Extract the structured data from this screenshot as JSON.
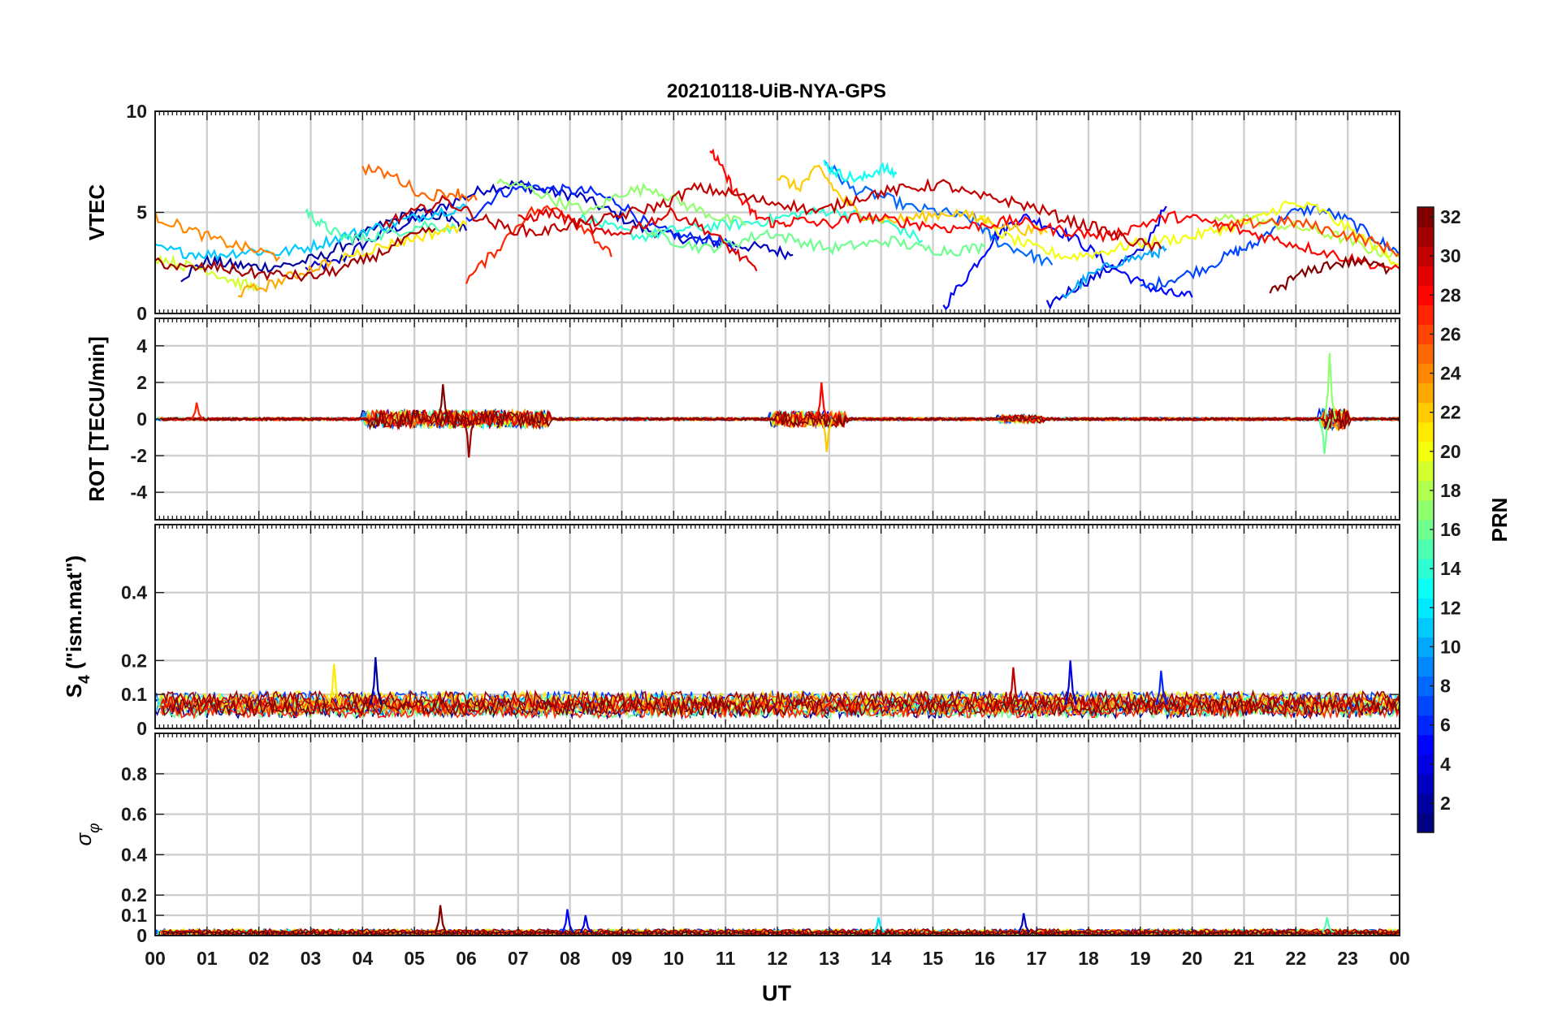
{
  "chart_data": {
    "type": "line",
    "title": "20210118-UiB-NYA-GPS",
    "xlabel": "UT",
    "x_ticks": [
      "00",
      "01",
      "02",
      "03",
      "04",
      "05",
      "06",
      "07",
      "08",
      "09",
      "10",
      "11",
      "12",
      "13",
      "14",
      "15",
      "16",
      "17",
      "18",
      "19",
      "20",
      "21",
      "22",
      "23",
      "00"
    ],
    "xlim": [
      0,
      24
    ],
    "grid": true,
    "colorbar": {
      "label": "PRN",
      "range": [
        1,
        32
      ],
      "ticks": [
        "2",
        "4",
        "6",
        "8",
        "10",
        "12",
        "14",
        "16",
        "18",
        "20",
        "22",
        "24",
        "26",
        "28",
        "30",
        "32"
      ],
      "colormap": "jet"
    },
    "panels": [
      {
        "ylabel": "VTEC",
        "ylim": [
          0,
          10
        ],
        "y_ticks": [
          "0",
          "5",
          "10"
        ],
        "series": [
          {
            "prn": 3,
            "x": [
              2.9,
              3.5,
              4.0,
              4.6,
              5.2,
              5.8,
              6.4,
              7.0,
              7.6,
              8.2,
              8.8,
              9.4,
              10.0,
              10.6,
              11.2,
              11.8,
              12.3
            ],
            "y": [
              2.2,
              2.5,
              3.4,
              4.2,
              4.8,
              5.6,
              6.2,
              6.4,
              6.0,
              5.8,
              5.0,
              4.2,
              3.8,
              3.6,
              3.4,
              3.2,
              2.9
            ]
          },
          {
            "prn": 2,
            "x": [
              0.5,
              1.0,
              1.5,
              2.0,
              2.6,
              3.2,
              3.8,
              4.4,
              5.0,
              5.6,
              6.0
            ],
            "y": [
              1.8,
              2.6,
              2.4,
              2.3,
              2.4,
              2.8,
              3.6,
              4.4,
              5.0,
              4.8,
              4.1
            ]
          },
          {
            "prn": 6,
            "x": [
              6.0,
              6.6,
              7.2,
              7.8,
              8.4,
              9.0,
              9.6,
              10.2,
              10.8,
              11.2
            ],
            "y": [
              4.6,
              5.9,
              6.3,
              6.1,
              6.0,
              5.4,
              4.2,
              3.8,
              3.6,
              3.2
            ]
          },
          {
            "prn": 5,
            "x": [
              15.2,
              15.7,
              16.2,
              16.7,
              17.2,
              17.8,
              18.4,
              19.0,
              19.5,
              20.0
            ],
            "y": [
              0.3,
              2.0,
              3.8,
              4.8,
              4.4,
              3.6,
              2.4,
              1.5,
              1.0,
              0.8
            ]
          },
          {
            "prn": 4,
            "x": [
              17.2,
              17.8,
              18.4,
              19.0,
              19.5
            ],
            "y": [
              0.4,
              1.4,
              2.2,
              3.0,
              5.3
            ]
          },
          {
            "prn": 7,
            "x": [
              19.0,
              19.6,
              20.2,
              20.8,
              21.2,
              21.8,
              22.4,
              23.0,
              23.6,
              24.0
            ],
            "y": [
              1.2,
              1.7,
              2.2,
              3.0,
              3.4,
              4.9,
              5.2,
              4.6,
              3.6,
              3.0
            ]
          },
          {
            "prn": 8,
            "x": [
              12.9,
              13.4,
              14.0,
              14.6,
              15.2,
              15.8,
              16.2,
              16.8,
              17.3
            ],
            "y": [
              7.6,
              6.2,
              5.8,
              5.2,
              5.0,
              4.6,
              3.6,
              3.0,
              2.4
            ]
          },
          {
            "prn": 10,
            "x": [
              17.5,
              18.0,
              18.6,
              19.2,
              19.5
            ],
            "y": [
              0.8,
              1.8,
              2.6,
              2.9,
              3.2
            ]
          },
          {
            "prn": 11,
            "x": [
              0.0,
              0.6,
              1.2,
              1.8,
              2.4,
              3.0,
              3.6,
              4.2,
              4.8,
              5.4,
              6.0
            ],
            "y": [
              3.2,
              3.0,
              2.9,
              3.1,
              3.0,
              3.3,
              3.8,
              4.2,
              4.6,
              5.0,
              5.3
            ]
          },
          {
            "prn": 13,
            "x": [
              12.9,
              13.2,
              13.6,
              14.0,
              14.3
            ],
            "y": [
              7.4,
              6.9,
              6.6,
              7.2,
              6.9
            ]
          },
          {
            "prn": 15,
            "x": [
              2.9,
              3.2,
              3.6,
              4.0,
              4.6,
              5.2,
              5.8
            ],
            "y": [
              5.1,
              4.4,
              3.8,
              3.7,
              4.0,
              4.4,
              4.2
            ]
          },
          {
            "prn": 14,
            "x": [
              8.2,
              8.8,
              9.4,
              10.0,
              10.6,
              11.2,
              11.8,
              12.4,
              13.0,
              13.6,
              14.2,
              14.8
            ],
            "y": [
              4.8,
              4.2,
              3.8,
              4.1,
              4.3,
              4.4,
              4.6,
              4.9,
              5.1,
              4.8,
              4.4,
              3.6
            ]
          },
          {
            "prn": 17,
            "x": [
              6.6,
              7.2,
              7.8,
              8.4,
              9.0,
              9.6,
              10.2,
              10.8,
              11.4
            ],
            "y": [
              6.5,
              6.2,
              5.5,
              5.0,
              6.0,
              6.2,
              5.4,
              4.8,
              4.4
            ]
          },
          {
            "prn": 18,
            "x": [
              20.4,
              21.0,
              21.6,
              22.2,
              22.8,
              23.4,
              24.0
            ],
            "y": [
              4.6,
              4.8,
              4.4,
              4.2,
              3.8,
              3.2,
              2.8
            ]
          },
          {
            "prn": 16,
            "x": [
              9.4,
              10.0,
              10.6,
              11.2,
              11.8,
              12.4,
              13.0,
              13.6,
              14.2,
              14.8,
              15.4,
              16.0
            ],
            "y": [
              4.2,
              3.6,
              3.2,
              3.5,
              4.0,
              3.6,
              3.2,
              3.4,
              3.6,
              3.2,
              3.1,
              3.3
            ]
          },
          {
            "prn": 19,
            "x": [
              0.0,
              0.5,
              1.0,
              1.5,
              2.0
            ],
            "y": [
              2.8,
              2.4,
              2.2,
              1.6,
              1.2
            ]
          },
          {
            "prn": 20,
            "x": [
              15.8,
              16.4,
              17.0,
              17.6,
              18.2,
              18.8,
              19.4,
              20.0,
              20.6,
              21.2,
              21.8,
              22.4,
              23.0,
              23.6,
              24.0
            ],
            "y": [
              4.9,
              3.8,
              3.2,
              2.8,
              3.0,
              3.4,
              3.6,
              3.8,
              4.2,
              4.6,
              5.4,
              5.2,
              4.2,
              3.2,
              2.4
            ]
          },
          {
            "prn": 22,
            "x": [
              12.0,
              12.4,
              12.8,
              13.2,
              13.6,
              14.2,
              14.8,
              15.4,
              16.0,
              16.6,
              17.2
            ],
            "y": [
              6.8,
              6.2,
              7.2,
              5.8,
              4.9,
              4.6,
              4.8,
              5.0,
              4.6,
              4.2,
              4.0
            ]
          },
          {
            "prn": 21,
            "x": [
              3.6,
              4.2,
              4.8,
              5.4,
              6.0
            ],
            "y": [
              2.8,
              3.2,
              3.6,
              4.0,
              4.4
            ]
          },
          {
            "prn": 24,
            "x": [
              0.0,
              0.6,
              1.2,
              1.8,
              2.4
            ],
            "y": [
              4.8,
              4.2,
              3.6,
              3.2,
              2.8
            ]
          },
          {
            "prn": 23,
            "x": [
              1.6,
              2.2,
              2.8,
              3.4
            ],
            "y": [
              1.0,
              1.4,
              2.0,
              2.6
            ]
          },
          {
            "prn": 25,
            "x": [
              4.0,
              4.6,
              5.2,
              5.8,
              6.2
            ],
            "y": [
              7.2,
              6.8,
              5.8,
              6.0,
              5.6
            ]
          },
          {
            "prn": 26,
            "x": [
              20.4,
              21.0,
              21.6,
              22.2,
              22.8,
              23.4,
              24.0
            ],
            "y": [
              4.2,
              4.4,
              4.6,
              4.4,
              4.0,
              3.6,
              3.0
            ]
          },
          {
            "prn": 27,
            "x": [
              6.0,
              6.6,
              7.2,
              7.8,
              8.4,
              8.8
            ],
            "y": [
              1.6,
              3.2,
              5.0,
              5.2,
              4.0,
              2.8
            ]
          },
          {
            "prn": 28,
            "x": [
              10.7,
              11.0,
              11.3,
              11.6,
              12.0,
              12.4,
              13.0,
              13.6,
              14.2,
              14.8,
              15.4,
              16.0,
              16.6,
              17.2,
              17.8,
              18.4,
              19.0,
              19.6,
              20.2,
              20.8,
              21.4,
              22.0,
              22.6,
              23.2,
              24.0
            ],
            "y": [
              8.2,
              6.8,
              5.6,
              4.8,
              4.4,
              4.6,
              4.4,
              4.8,
              4.6,
              4.4,
              4.2,
              4.4,
              4.6,
              4.2,
              4.0,
              3.8,
              4.4,
              4.8,
              4.6,
              4.2,
              3.8,
              3.4,
              3.0,
              2.6,
              2.2
            ]
          },
          {
            "prn": 29,
            "x": [
              7.0,
              7.6,
              8.2,
              8.8,
              9.4,
              10.0,
              10.6,
              11.2,
              11.6
            ],
            "y": [
              4.6,
              5.0,
              4.4,
              3.8,
              4.4,
              5.0,
              4.2,
              3.0,
              2.1
            ]
          },
          {
            "prn": 30,
            "x": [
              4.4,
              5.0,
              5.6,
              6.2,
              6.8,
              7.4,
              8.0,
              8.6,
              9.2,
              9.8,
              10.4,
              11.0,
              11.6,
              12.2,
              12.8,
              13.4,
              14.0,
              14.6,
              15.2,
              15.8,
              16.4,
              17.0,
              17.6,
              18.2,
              18.8,
              19.4
            ],
            "y": [
              4.4,
              5.0,
              5.6,
              4.8,
              4.2,
              4.0,
              4.4,
              4.6,
              5.0,
              5.4,
              6.2,
              6.0,
              5.6,
              5.4,
              5.0,
              5.6,
              6.0,
              6.2,
              6.4,
              5.8,
              5.6,
              5.2,
              4.6,
              4.2,
              3.6,
              3.2
            ]
          },
          {
            "prn": 31,
            "x": [
              0.0,
              0.6,
              1.2,
              1.8,
              2.4,
              3.0,
              3.6,
              4.2,
              4.8,
              5.4
            ],
            "y": [
              2.6,
              2.2,
              2.3,
              2.0,
              1.9,
              1.8,
              2.2,
              2.8,
              3.6,
              4.2
            ]
          },
          {
            "prn": 32,
            "x": [
              21.5,
              22.0,
              22.6,
              23.2,
              23.8
            ],
            "y": [
              1.0,
              1.8,
              2.4,
              2.6,
              2.2
            ]
          }
        ]
      },
      {
        "ylabel": "ROT [TECU/min]",
        "ylim": [
          -5.5,
          5.5
        ],
        "y_ticks": [
          "-4",
          "-2",
          "0",
          "2",
          "4"
        ],
        "noise": {
          "baseline_amplitude": 0.15,
          "bursts": [
            {
              "hour_from": 4.0,
              "hour_to": 7.5,
              "amplitude": 0.9
            },
            {
              "hour_from": 11.8,
              "hour_to": 13.2,
              "amplitude": 0.8
            },
            {
              "hour_from": 16.2,
              "hour_to": 17.0,
              "amplitude": 0.4
            },
            {
              "hour_from": 22.4,
              "hour_to": 22.9,
              "amplitude": 1.1
            }
          ],
          "peaks": [
            {
              "hour": 5.55,
              "value": 1.9,
              "prn": 32
            },
            {
              "hour": 6.05,
              "value": -2.1,
              "prn": 31
            },
            {
              "hour": 12.85,
              "value": 2.0,
              "prn": 28
            },
            {
              "hour": 12.95,
              "value": -1.8,
              "prn": 22
            },
            {
              "hour": 22.65,
              "value": 3.6,
              "prn": 17
            },
            {
              "hour": 22.55,
              "value": -1.9,
              "prn": 16
            },
            {
              "hour": 0.8,
              "value": 0.9,
              "prn": 27
            }
          ]
        }
      },
      {
        "ylabel": "S4 (\"ism.mat\")",
        "ylabel_main": "S",
        "ylabel_sub": "4",
        "ylabel_rest": " (\"ism.mat\")",
        "ylim": [
          0,
          0.6
        ],
        "y_ticks": [
          "0",
          "0.1",
          "0.2",
          "0.4"
        ],
        "noise": {
          "baseline": 0.07,
          "amplitude": 0.045,
          "peaks": [
            {
              "hour": 4.25,
              "value": 0.21,
              "prn": 2
            },
            {
              "hour": 17.65,
              "value": 0.2,
              "prn": 4
            },
            {
              "hour": 16.55,
              "value": 0.18,
              "prn": 30
            },
            {
              "hour": 3.45,
              "value": 0.19,
              "prn": 21
            },
            {
              "hour": 19.4,
              "value": 0.17,
              "prn": 6
            }
          ]
        }
      },
      {
        "ylabel": "σφ",
        "ylabel_main": "σ",
        "ylabel_sub": "φ",
        "ylim": [
          0,
          1
        ],
        "y_ticks": [
          "0",
          "0.1",
          "0.2",
          "0.4",
          "0.6",
          "0.8"
        ],
        "noise": {
          "baseline": 0.015,
          "amplitude": 0.02,
          "peaks": [
            {
              "hour": 5.5,
              "value": 0.15,
              "prn": 32
            },
            {
              "hour": 7.95,
              "value": 0.13,
              "prn": 5
            },
            {
              "hour": 8.3,
              "value": 0.1,
              "prn": 4
            },
            {
              "hour": 16.75,
              "value": 0.11,
              "prn": 3
            },
            {
              "hour": 13.95,
              "value": 0.09,
              "prn": 12
            },
            {
              "hour": 22.6,
              "value": 0.09,
              "prn": 15
            }
          ]
        }
      }
    ]
  }
}
